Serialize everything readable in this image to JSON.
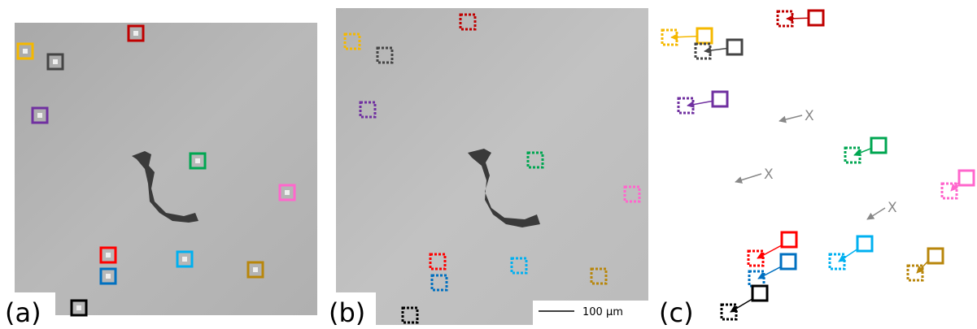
{
  "panels": {
    "a": {
      "label": "(a)"
    },
    "b": {
      "label": "(b)",
      "scale_bar": "100 µm"
    },
    "c": {
      "label": "(c)",
      "markers": [
        "X",
        "X",
        "X"
      ]
    }
  }
}
